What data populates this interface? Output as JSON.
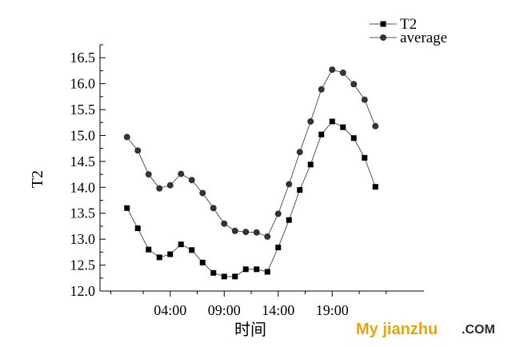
{
  "chart_data": {
    "type": "line",
    "title": "",
    "xlabel": "时间",
    "ylabel": "T2",
    "ylim": [
      12.0,
      16.75
    ],
    "yticks": [
      "12.0",
      "12.5",
      "13.0",
      "13.5",
      "14.0",
      "14.5",
      "15.0",
      "15.5",
      "16.0",
      "16.5"
    ],
    "xtick_labels": [
      "04:00",
      "09:00",
      "14:00",
      "19:00"
    ],
    "xtick_hours": [
      4,
      9,
      14,
      19
    ],
    "xlim": [
      -2.5,
      27.5
    ],
    "x": [
      0,
      1,
      2,
      3,
      4,
      5,
      6,
      7,
      8,
      9,
      10,
      11,
      12,
      13,
      14,
      15,
      16,
      17,
      18,
      19,
      20,
      21,
      22,
      23
    ],
    "series": [
      {
        "name": "T2",
        "marker": "square",
        "color": "#000000",
        "values": [
          13.6,
          13.21,
          12.8,
          12.65,
          12.71,
          12.9,
          12.79,
          12.55,
          12.35,
          12.28,
          12.28,
          12.42,
          12.42,
          12.37,
          12.84,
          13.37,
          13.95,
          14.44,
          15.02,
          15.27,
          15.16,
          14.95,
          14.57,
          14.01
        ]
      },
      {
        "name": "average",
        "marker": "circle",
        "color": "#333333",
        "values": [
          14.97,
          14.71,
          14.25,
          13.98,
          14.04,
          14.26,
          14.14,
          13.89,
          13.6,
          13.3,
          13.16,
          13.14,
          13.13,
          13.05,
          13.49,
          14.06,
          14.68,
          15.27,
          15.89,
          16.27,
          16.21,
          15.99,
          15.69,
          15.18
        ]
      }
    ],
    "legend_position": "top-right",
    "grid": false
  },
  "watermark": {
    "brand": "My jianzhu",
    "suffix": ".COM"
  }
}
